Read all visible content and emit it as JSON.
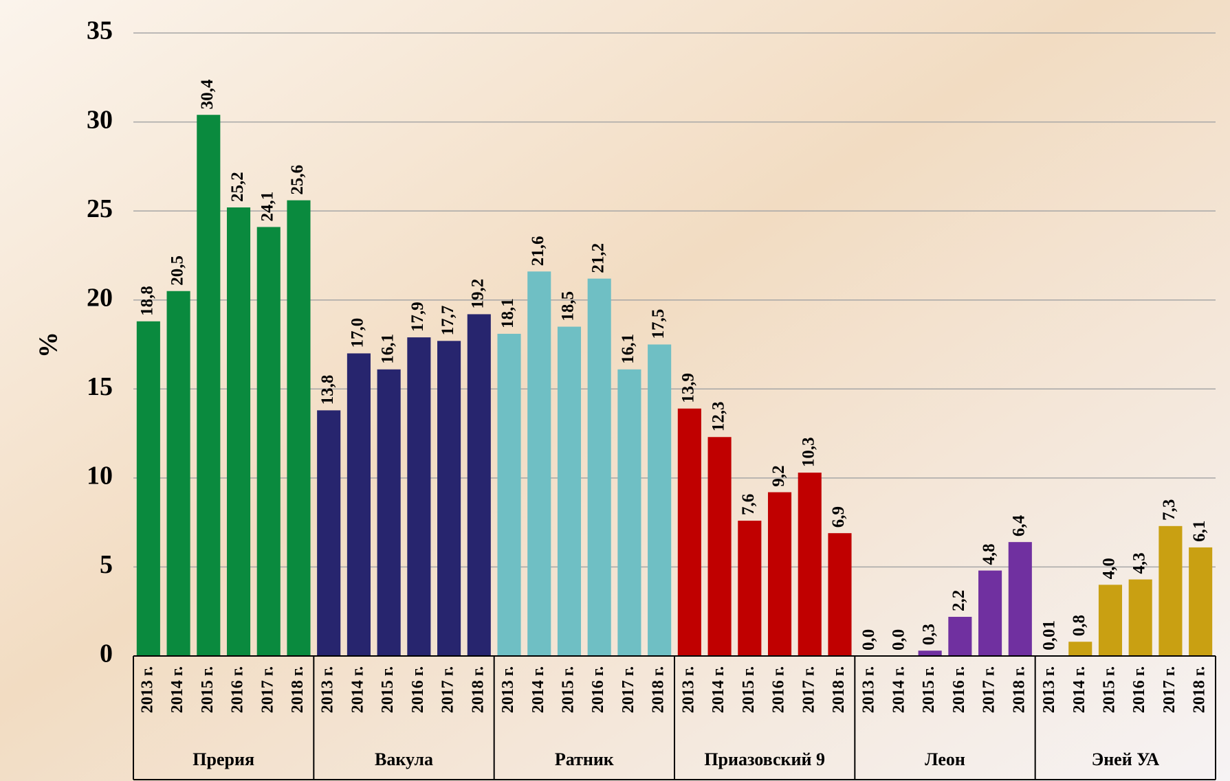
{
  "chart_data": {
    "type": "bar",
    "y_label": "%",
    "categories": [
      "2013 г.",
      "2014 г.",
      "2015 г.",
      "2016 г.",
      "2017 г.",
      "2018 г."
    ],
    "series": [
      {
        "name": "Прерия",
        "color": "#0a8a3e",
        "values": [
          18.8,
          20.5,
          30.4,
          25.2,
          24.1,
          25.6
        ],
        "value_labels": [
          "18,8",
          "20,5",
          "30,4",
          "25,2",
          "24,1",
          "25,6"
        ]
      },
      {
        "name": "Вакула",
        "color": "#27256e",
        "values": [
          13.8,
          17.0,
          16.1,
          17.9,
          17.7,
          19.2
        ],
        "value_labels": [
          "13,8",
          "17,0",
          "16,1",
          "17,9",
          "17,7",
          "19,2"
        ]
      },
      {
        "name": "Ратник",
        "color": "#6fbfc4",
        "values": [
          18.1,
          21.6,
          18.5,
          21.2,
          16.1,
          17.5
        ],
        "value_labels": [
          "18,1",
          "21,6",
          "18,5",
          "21,2",
          "16,1",
          "17,5"
        ]
      },
      {
        "name": "Приазовский 9",
        "color": "#c00000",
        "values": [
          13.9,
          12.3,
          7.6,
          9.2,
          10.3,
          6.9
        ],
        "value_labels": [
          "13,9",
          "12,3",
          "7,6",
          "9,2",
          "10,3",
          "6,9"
        ]
      },
      {
        "name": "Леон",
        "color": "#7030a0",
        "values": [
          0.0,
          0.0,
          0.3,
          2.2,
          4.8,
          6.4
        ],
        "value_labels": [
          "0,0",
          "0,0",
          "0,3",
          "2,2",
          "4,8",
          "6,4"
        ]
      },
      {
        "name": "Эней УА",
        "color": "#c9a012",
        "values": [
          0.01,
          0.8,
          4.0,
          4.3,
          7.3,
          6.1
        ],
        "value_labels": [
          "0,01",
          "0,8",
          "4,0",
          "4,3",
          "7,3",
          "6,1"
        ]
      }
    ],
    "ylim": [
      0,
      35
    ],
    "yticks": [
      0,
      5,
      10,
      15,
      20,
      25,
      30,
      35
    ],
    "grid": true
  }
}
